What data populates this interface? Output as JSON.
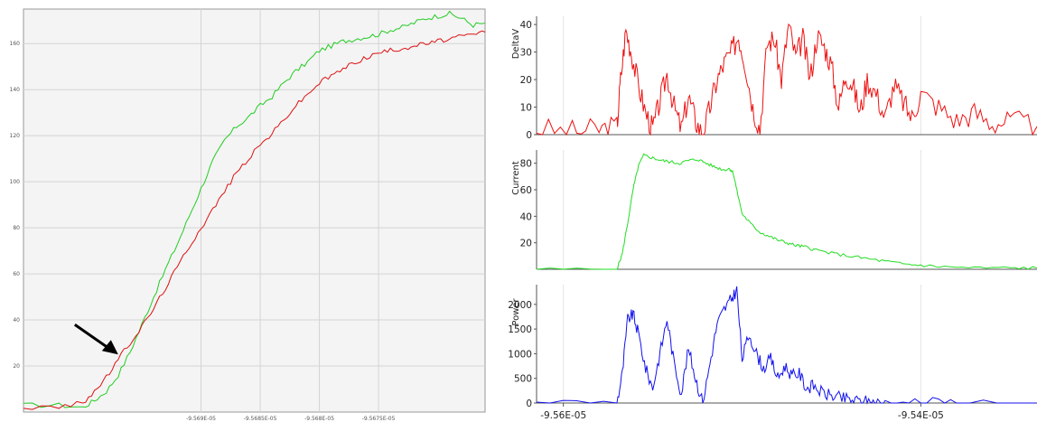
{
  "chart_data": [
    {
      "type": "line",
      "title": "",
      "xlabel": "",
      "ylabel": "",
      "xlim": [
        -9.5705e-05,
        -9.5666e-05
      ],
      "ylim": [
        0,
        175
      ],
      "x_tick_labels": [
        "-9.569E-05",
        "-9.5685E-05",
        "-9.568E-05",
        "-9.5675E-05"
      ],
      "x_tick_values": [
        -9.569e-05,
        -9.5685e-05,
        -9.568e-05,
        -9.5675e-05
      ],
      "y_ticks": [
        20,
        40,
        60,
        80,
        100,
        120,
        140,
        160
      ],
      "grid": true,
      "background": "#f4f4f4",
      "annotation": {
        "type": "arrow",
        "points_to": {
          "x": -9.5697e-05,
          "y": 25
        }
      },
      "series": [
        {
          "color": "#22cc22",
          "x": [
            -9.5705e-05,
            -9.5702e-05,
            -9.57e-05,
            -9.5699e-05,
            -9.5698e-05,
            -9.5697e-05,
            -9.5696e-05,
            -9.5695e-05,
            -9.5694e-05,
            -9.5693e-05,
            -9.5692e-05,
            -9.5691e-05,
            -9.569e-05,
            -9.5689e-05,
            -9.5688e-05,
            -9.5687e-05,
            -9.5686e-05,
            -9.5685e-05,
            -9.5684e-05,
            -9.5683e-05,
            -9.5682e-05,
            -9.5681e-05,
            -9.568e-05,
            -9.5679e-05,
            -9.5678e-05,
            -9.5677e-05,
            -9.5676e-05,
            -9.5675e-05,
            -9.5674e-05,
            -9.5673e-05,
            -9.5672e-05,
            -9.5671e-05,
            -9.567e-05,
            -9.5669e-05,
            -9.5668e-05,
            -9.5667e-05,
            -9.5666e-05
          ],
          "values": [
            3,
            3,
            2,
            5,
            9,
            16,
            26,
            38,
            50,
            62,
            73,
            85,
            97,
            109,
            118,
            124,
            128,
            133,
            137,
            143,
            148,
            152,
            157,
            159,
            161,
            162,
            163,
            164,
            166,
            167,
            169,
            171,
            172,
            173,
            171,
            168,
            169
          ]
        },
        {
          "color": "#dd1111",
          "x": [
            -9.5705e-05,
            -9.5702e-05,
            -9.57e-05,
            -9.5699e-05,
            -9.5698e-05,
            -9.5697e-05,
            -9.5696e-05,
            -9.5695e-05,
            -9.5694e-05,
            -9.5693e-05,
            -9.5692e-05,
            -9.5691e-05,
            -9.569e-05,
            -9.5689e-05,
            -9.5688e-05,
            -9.5687e-05,
            -9.5686e-05,
            -9.5685e-05,
            -9.5684e-05,
            -9.5683e-05,
            -9.5682e-05,
            -9.5681e-05,
            -9.568e-05,
            -9.5679e-05,
            -9.5678e-05,
            -9.5677e-05,
            -9.5676e-05,
            -9.5675e-05,
            -9.5674e-05,
            -9.5673e-05,
            -9.5672e-05,
            -9.5671e-05,
            -9.567e-05,
            -9.5669e-05,
            -9.5668e-05,
            -9.5667e-05,
            -9.5666e-05
          ],
          "values": [
            2,
            2,
            4,
            9,
            15,
            23,
            30,
            37,
            45,
            54,
            63,
            72,
            80,
            88,
            96,
            104,
            110,
            116,
            121,
            127,
            133,
            138,
            143,
            146,
            149,
            152,
            154,
            156,
            157,
            158,
            159,
            160,
            161,
            162,
            163,
            164,
            165
          ]
        }
      ]
    },
    {
      "type": "line",
      "title": "",
      "xlabel": "",
      "ylabel": "DeltaV",
      "xlim": [
        -9.5615e-05,
        -9.5335e-05
      ],
      "ylim": [
        0,
        43
      ],
      "y_ticks": [
        0,
        10,
        20,
        30,
        40
      ],
      "x_tick_values": [
        -9.56e-05,
        -9.54e-05
      ],
      "grid": true,
      "series": [
        {
          "color": "#ee1111",
          "x": [
            -9.5615e-05,
            -9.5595e-05,
            -9.558e-05,
            -9.557e-05,
            -9.5568e-05,
            -9.5565e-05,
            -9.5562e-05,
            -9.5558e-05,
            -9.5554e-05,
            -9.555e-05,
            -9.5546e-05,
            -9.5542e-05,
            -9.5538e-05,
            -9.5534e-05,
            -9.553e-05,
            -9.5526e-05,
            -9.5522e-05,
            -9.5518e-05,
            -9.5514e-05,
            -9.551e-05,
            -9.5506e-05,
            -9.5502e-05,
            -9.5498e-05,
            -9.5494e-05,
            -9.549e-05,
            -9.5486e-05,
            -9.5482e-05,
            -9.5478e-05,
            -9.5474e-05,
            -9.547e-05,
            -9.5466e-05,
            -9.5462e-05,
            -9.5458e-05,
            -9.5454e-05,
            -9.545e-05,
            -9.5446e-05,
            -9.5442e-05,
            -9.5438e-05,
            -9.5434e-05,
            -9.543e-05,
            -9.5425e-05,
            -9.542e-05,
            -9.5415e-05,
            -9.541e-05,
            -9.5405e-05,
            -9.54e-05,
            -9.539e-05,
            -9.538e-05,
            -9.537e-05,
            -9.536e-05,
            -9.535e-05,
            -9.5335e-05
          ],
          "values": [
            2,
            1,
            2,
            3,
            20,
            38,
            30,
            18,
            8,
            2,
            12,
            22,
            10,
            2,
            14,
            5,
            0,
            10,
            20,
            26,
            30,
            36,
            25,
            10,
            2,
            33,
            35,
            20,
            40,
            28,
            35,
            20,
            36,
            32,
            25,
            10,
            22,
            18,
            8,
            20,
            15,
            6,
            18,
            12,
            6,
            15,
            10,
            5,
            8,
            4,
            5,
            3
          ]
        }
      ]
    },
    {
      "type": "line",
      "title": "",
      "xlabel": "",
      "ylabel": "Current",
      "xlim": [
        -9.5615e-05,
        -9.5335e-05
      ],
      "ylim": [
        0,
        90
      ],
      "y_ticks": [
        20,
        40,
        60,
        80
      ],
      "x_tick_values": [
        -9.56e-05,
        -9.54e-05
      ],
      "grid": true,
      "series": [
        {
          "color": "#22dd22",
          "x": [
            -9.5615e-05,
            -9.557e-05,
            -9.5567e-05,
            -9.5564e-05,
            -9.5561e-05,
            -9.5558e-05,
            -9.5555e-05,
            -9.555e-05,
            -9.5545e-05,
            -9.554e-05,
            -9.5535e-05,
            -9.553e-05,
            -9.5525e-05,
            -9.552e-05,
            -9.5515e-05,
            -9.551e-05,
            -9.5507e-05,
            -9.5505e-05,
            -9.5503e-05,
            -9.55e-05,
            -9.5495e-05,
            -9.549e-05,
            -9.5485e-05,
            -9.548e-05,
            -9.5475e-05,
            -9.547e-05,
            -9.5465e-05,
            -9.546e-05,
            -9.545e-05,
            -9.544e-05,
            -9.543e-05,
            -9.542e-05,
            -9.541e-05,
            -9.54e-05,
            -9.539e-05,
            -9.537e-05,
            -9.535e-05,
            -9.5335e-05
          ],
          "values": [
            0,
            0,
            12,
            35,
            60,
            78,
            86,
            84,
            82,
            81,
            80,
            82,
            83,
            80,
            77,
            75,
            76,
            73,
            60,
            42,
            34,
            28,
            25,
            22,
            20,
            18,
            17,
            15,
            12,
            10,
            8,
            6,
            4,
            3,
            2,
            1,
            1,
            1
          ]
        }
      ]
    },
    {
      "type": "line",
      "title": "",
      "xlabel": "",
      "ylabel": "Power",
      "xlim": [
        -9.5615e-05,
        -9.5335e-05
      ],
      "ylim": [
        0,
        2400
      ],
      "y_ticks": [
        0,
        500,
        1000,
        1500,
        2000
      ],
      "x_tick_labels": [
        "-9.56E-05",
        "-9.54E-05"
      ],
      "x_tick_values": [
        -9.56e-05,
        -9.54e-05
      ],
      "grid": true,
      "series": [
        {
          "color": "#1111ee",
          "x": [
            -9.5615e-05,
            -9.557e-05,
            -9.5567e-05,
            -9.5564e-05,
            -9.5561e-05,
            -9.5558e-05,
            -9.5554e-05,
            -9.555e-05,
            -9.5546e-05,
            -9.5542e-05,
            -9.5538e-05,
            -9.5534e-05,
            -9.553e-05,
            -9.5526e-05,
            -9.5522e-05,
            -9.5518e-05,
            -9.5514e-05,
            -9.551e-05,
            -9.5506e-05,
            -9.5503e-05,
            -9.55e-05,
            -9.5496e-05,
            -9.5492e-05,
            -9.5488e-05,
            -9.5484e-05,
            -9.548e-05,
            -9.5476e-05,
            -9.5472e-05,
            -9.5468e-05,
            -9.5464e-05,
            -9.546e-05,
            -9.5455e-05,
            -9.545e-05,
            -9.5445e-05,
            -9.544e-05,
            -9.5435e-05,
            -9.543e-05,
            -9.5425e-05,
            -9.542e-05,
            -9.54e-05,
            -9.538e-05,
            -9.5335e-05
          ],
          "values": [
            0,
            0,
            600,
            1700,
            1800,
            1400,
            700,
            300,
            1000,
            1700,
            800,
            200,
            1100,
            500,
            0,
            800,
            1600,
            1900,
            2100,
            2300,
            900,
            1400,
            1000,
            700,
            900,
            500,
            750,
            550,
            600,
            300,
            350,
            200,
            150,
            100,
            70,
            40,
            30,
            10,
            0,
            0,
            0,
            0
          ]
        }
      ]
    }
  ]
}
